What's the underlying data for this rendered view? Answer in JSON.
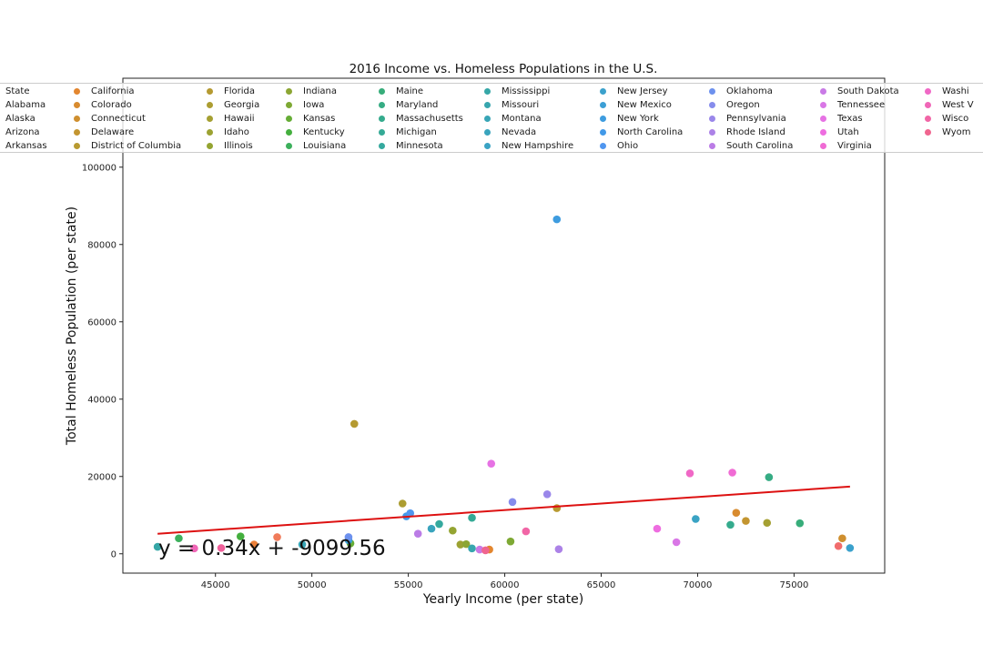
{
  "chart_data": {
    "type": "scatter",
    "title": "2016 Income vs. Homeless Populations in the U.S.",
    "xlabel": "Yearly Income (per state)",
    "ylabel": "Total Homeless Population (per state)",
    "xlim": [
      40200,
      79700
    ],
    "ylim": [
      -5000,
      123000
    ],
    "xticks": [
      45000,
      50000,
      55000,
      60000,
      65000,
      70000,
      75000
    ],
    "yticks": [
      0,
      20000,
      40000,
      60000,
      80000,
      100000
    ],
    "legend_position": "top",
    "legend_title": "State",
    "trendline": {
      "x": [
        42000,
        77900
      ],
      "color": "#dd1111",
      "equation": "y = 0.34x + -9099.56"
    },
    "points": [
      {
        "state": "Alabama",
        "x": 45300,
        "y": 1500,
        "color": "#f0609a"
      },
      {
        "state": "Alaska",
        "x": 77300,
        "y": 2000,
        "color": "#f16c6c"
      },
      {
        "state": "Arizona",
        "x": 48200,
        "y": 4300,
        "color": "#f07b5a"
      },
      {
        "state": "Arkansas",
        "x": 47000,
        "y": 2400,
        "color": "#ec8038"
      },
      {
        "state": "California",
        "x": 59200,
        "y": 1100,
        "color": "#e3862f"
      },
      {
        "state": "Colorado",
        "x": 72000,
        "y": 10600,
        "color": "#d88b2f"
      },
      {
        "state": "Connecticut",
        "x": 77500,
        "y": 4000,
        "color": "#cf8f2f"
      },
      {
        "state": "Delaware",
        "x": 72500,
        "y": 8500,
        "color": "#c39530"
      },
      {
        "state": "District of Columbia",
        "x": 62700,
        "y": 11800,
        "color": "#b89a31"
      },
      {
        "state": "Florida",
        "x": 52200,
        "y": 33600,
        "color": "#b59a31"
      },
      {
        "state": "Georgia",
        "x": 54700,
        "y": 13000,
        "color": "#ac9d32"
      },
      {
        "state": "Hawaii",
        "x": 73600,
        "y": 8000,
        "color": "#a5a032"
      },
      {
        "state": "Idaho",
        "x": 57700,
        "y": 2400,
        "color": "#9ca232"
      },
      {
        "state": "Illinois",
        "x": 57300,
        "y": 6000,
        "color": "#94a432"
      },
      {
        "state": "Indiana",
        "x": 58000,
        "y": 2500,
        "color": "#8ca633"
      },
      {
        "state": "Iowa",
        "x": 60300,
        "y": 3200,
        "color": "#7ea934"
      },
      {
        "state": "Kansas",
        "x": 52000,
        "y": 2700,
        "color": "#66ad36"
      },
      {
        "state": "Kentucky",
        "x": 46300,
        "y": 4500,
        "color": "#44af3e"
      },
      {
        "state": "Louisiana",
        "x": 43100,
        "y": 4000,
        "color": "#3cb05c"
      },
      {
        "state": "Maine",
        "x": 75300,
        "y": 7900,
        "color": "#37ad7a"
      },
      {
        "state": "Maryland",
        "x": 73700,
        "y": 19800,
        "color": "#36ac84"
      },
      {
        "state": "Massachusetts",
        "x": 71700,
        "y": 7500,
        "color": "#35ab8d"
      },
      {
        "state": "Michigan",
        "x": 58300,
        "y": 9300,
        "color": "#35aa96"
      },
      {
        "state": "Minnesota",
        "x": 56600,
        "y": 7700,
        "color": "#35a99e"
      },
      {
        "state": "Mississippi",
        "x": 42000,
        "y": 1800,
        "color": "#36a7a7"
      },
      {
        "state": "Missouri",
        "x": 58300,
        "y": 1400,
        "color": "#37a6ae"
      },
      {
        "state": "Montana",
        "x": 49500,
        "y": 2400,
        "color": "#38a5b6"
      },
      {
        "state": "Nevada",
        "x": 56200,
        "y": 6500,
        "color": "#39a4bd"
      },
      {
        "state": "New Hampshire",
        "x": 69900,
        "y": 9000,
        "color": "#3aa3c4"
      },
      {
        "state": "New Jersey",
        "x": 77900,
        "y": 1500,
        "color": "#3ba1cc"
      },
      {
        "state": "New Mexico",
        "x": 51900,
        "y": 3500,
        "color": "#3c9fd5"
      },
      {
        "state": "New York",
        "x": 62700,
        "y": 86500,
        "color": "#3e9cdf"
      },
      {
        "state": "North Carolina",
        "x": 54900,
        "y": 9700,
        "color": "#4299e8"
      },
      {
        "state": "Ohio",
        "x": 55100,
        "y": 10500,
        "color": "#5096ef"
      },
      {
        "state": "Oklahoma",
        "x": 51900,
        "y": 4300,
        "color": "#6d91ee"
      },
      {
        "state": "Oregon",
        "x": 60400,
        "y": 13400,
        "color": "#868cec"
      },
      {
        "state": "Pennsylvania",
        "x": 62200,
        "y": 15400,
        "color": "#9a87ea"
      },
      {
        "state": "Rhode Island",
        "x": 62800,
        "y": 1200,
        "color": "#ac82e7"
      },
      {
        "state": "South Carolina",
        "x": 55500,
        "y": 5200,
        "color": "#bb7ce6"
      },
      {
        "state": "South Dakota",
        "x": 58700,
        "y": 1100,
        "color": "#c97ae6"
      },
      {
        "state": "Tennessee",
        "x": 68900,
        "y": 3000,
        "color": "#d977e6"
      },
      {
        "state": "Texas",
        "x": 59300,
        "y": 23300,
        "color": "#e672e4"
      },
      {
        "state": "Utah",
        "x": 67900,
        "y": 6500,
        "color": "#ee6de0"
      },
      {
        "state": "Virginia",
        "x": 71800,
        "y": 21000,
        "color": "#f06bd4"
      },
      {
        "state": "Washington",
        "x": 69600,
        "y": 20800,
        "color": "#f068c6"
      },
      {
        "state": "West Virginia",
        "x": 43900,
        "y": 1400,
        "color": "#f066b7"
      },
      {
        "state": "Wisconsin",
        "x": 61100,
        "y": 5800,
        "color": "#f166a6"
      },
      {
        "state": "Wyoming",
        "x": 59000,
        "y": 900,
        "color": "#f0658f"
      }
    ]
  },
  "legend": {
    "title": "State",
    "title_color": "#f0609a",
    "columns": [
      [
        {
          "label": "State",
          "color": "#f0609a"
        },
        {
          "label": "Alabama",
          "color": "#f0609a"
        },
        {
          "label": "Alaska",
          "color": "#f16c6c"
        },
        {
          "label": "Arizona",
          "color": "#f07b5a"
        },
        {
          "label": "Arkansas",
          "color": "#ec8038"
        }
      ],
      [
        {
          "label": "California",
          "color": "#e3862f"
        },
        {
          "label": "Colorado",
          "color": "#d88b2f"
        },
        {
          "label": "Connecticut",
          "color": "#cf8f2f"
        },
        {
          "label": "Delaware",
          "color": "#c39530"
        },
        {
          "label": "District of Columbia",
          "color": "#b89a31"
        }
      ],
      [
        {
          "label": "Florida",
          "color": "#b59a31"
        },
        {
          "label": "Georgia",
          "color": "#ac9d32"
        },
        {
          "label": "Hawaii",
          "color": "#a5a032"
        },
        {
          "label": "Idaho",
          "color": "#9ca232"
        },
        {
          "label": "Illinois",
          "color": "#94a432"
        }
      ],
      [
        {
          "label": "Indiana",
          "color": "#8ca633"
        },
        {
          "label": "Iowa",
          "color": "#7ea934"
        },
        {
          "label": "Kansas",
          "color": "#66ad36"
        },
        {
          "label": "Kentucky",
          "color": "#44af3e"
        },
        {
          "label": "Louisiana",
          "color": "#3cb05c"
        }
      ],
      [
        {
          "label": "Maine",
          "color": "#37ad7a"
        },
        {
          "label": "Maryland",
          "color": "#36ac84"
        },
        {
          "label": "Massachusetts",
          "color": "#35ab8d"
        },
        {
          "label": "Michigan",
          "color": "#35aa96"
        },
        {
          "label": "Minnesota",
          "color": "#35a99e"
        }
      ],
      [
        {
          "label": "Mississippi",
          "color": "#36a7a7"
        },
        {
          "label": "Missouri",
          "color": "#37a6ae"
        },
        {
          "label": "Montana",
          "color": "#38a5b6"
        },
        {
          "label": "Nevada",
          "color": "#39a4bd"
        },
        {
          "label": "New Hampshire",
          "color": "#3aa3c4"
        }
      ],
      [
        {
          "label": "New Jersey",
          "color": "#3ba1cc"
        },
        {
          "label": "New Mexico",
          "color": "#3c9fd5"
        },
        {
          "label": "New York",
          "color": "#3e9cdf"
        },
        {
          "label": "North Carolina",
          "color": "#4299e8"
        },
        {
          "label": "Ohio",
          "color": "#5096ef"
        }
      ],
      [
        {
          "label": "Oklahoma",
          "color": "#6d91ee"
        },
        {
          "label": "Oregon",
          "color": "#868cec"
        },
        {
          "label": "Pennsylvania",
          "color": "#9a87ea"
        },
        {
          "label": "Rhode Island",
          "color": "#ac82e7"
        },
        {
          "label": "South Carolina",
          "color": "#bb7ce6"
        }
      ],
      [
        {
          "label": "South Dakota",
          "color": "#c97ae6"
        },
        {
          "label": "Tennessee",
          "color": "#d977e6"
        },
        {
          "label": "Texas",
          "color": "#e672e4"
        },
        {
          "label": "Utah",
          "color": "#ee6de0"
        },
        {
          "label": "Virginia",
          "color": "#f06bd4"
        }
      ],
      [
        {
          "label": "Washi",
          "color": "#f068c6"
        },
        {
          "label": "West V",
          "color": "#f066b7"
        },
        {
          "label": "Wisco",
          "color": "#f166a6"
        },
        {
          "label": "Wyom",
          "color": "#f0658f"
        }
      ]
    ]
  }
}
